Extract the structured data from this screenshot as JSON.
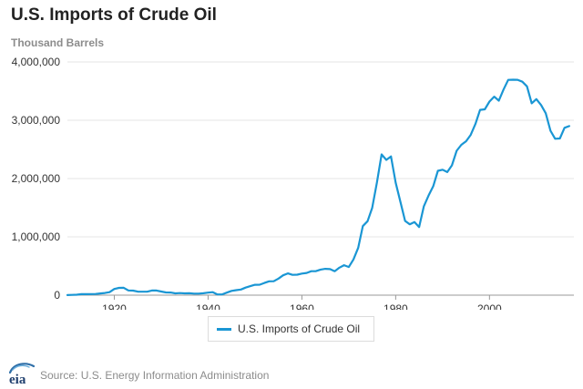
{
  "title": "U.S. Imports of Crude Oil",
  "subtitle": "Thousand Barrels",
  "legend": {
    "label": "U.S. Imports of Crude Oil"
  },
  "source": "Source: U.S. Energy Information Administration",
  "logo_text": "eia",
  "colors": {
    "series": "#1a96d4",
    "grid": "#e6e6e6",
    "axis": "#999999"
  },
  "chart_data": {
    "type": "line",
    "title": "U.S. Imports of Crude Oil",
    "subtitle": "Thousand Barrels",
    "xlabel": "",
    "ylabel": "",
    "xlim": [
      1910,
      2018
    ],
    "ylim": [
      0,
      4000000
    ],
    "x_ticks": [
      1920,
      1940,
      1960,
      1980,
      2000
    ],
    "x_tick_labels": [
      "1920",
      "1940",
      "1960",
      "1980",
      "2000"
    ],
    "y_ticks": [
      0,
      1000000,
      2000000,
      3000000,
      4000000
    ],
    "y_tick_labels": [
      "0",
      "1,000,000",
      "2,000,000",
      "3,000,000",
      "4,000,000"
    ],
    "grid": "horizontal",
    "legend_position": "bottom",
    "series": [
      {
        "name": "U.S. Imports of Crude Oil",
        "color": "#1a96d4",
        "x": [
          1910,
          1911,
          1912,
          1913,
          1914,
          1915,
          1916,
          1917,
          1918,
          1919,
          1920,
          1921,
          1922,
          1923,
          1924,
          1925,
          1926,
          1927,
          1928,
          1929,
          1930,
          1931,
          1932,
          1933,
          1934,
          1935,
          1936,
          1937,
          1938,
          1939,
          1940,
          1941,
          1942,
          1943,
          1944,
          1945,
          1946,
          1947,
          1948,
          1949,
          1950,
          1951,
          1952,
          1953,
          1954,
          1955,
          1956,
          1957,
          1958,
          1959,
          1960,
          1961,
          1962,
          1963,
          1964,
          1965,
          1966,
          1967,
          1968,
          1969,
          1970,
          1971,
          1972,
          1973,
          1974,
          1975,
          1976,
          1977,
          1978,
          1979,
          1980,
          1981,
          1982,
          1983,
          1984,
          1985,
          1986,
          1987,
          1988,
          1989,
          1990,
          1991,
          1992,
          1993,
          1994,
          1995,
          1996,
          1997,
          1998,
          1999,
          2000,
          2001,
          2002,
          2003,
          2004,
          2005,
          2006,
          2007,
          2008,
          2009,
          2010,
          2011,
          2012,
          2013,
          2014,
          2015,
          2016,
          2017
        ],
        "values": [
          1000,
          5000,
          8000,
          17000,
          17000,
          18000,
          20000,
          30000,
          38000,
          52000,
          106000,
          125000,
          127000,
          82000,
          78000,
          61000,
          60000,
          59000,
          80000,
          79000,
          62000,
          47000,
          45000,
          32000,
          36000,
          32000,
          33000,
          27000,
          26000,
          33000,
          43000,
          51000,
          12000,
          14000,
          44000,
          74000,
          86000,
          97000,
          129000,
          154000,
          178000,
          179000,
          209000,
          237000,
          239000,
          285000,
          341000,
          373000,
          348000,
          352000,
          371000,
          382000,
          411000,
          413000,
          439000,
          452000,
          447000,
          411000,
          472000,
          514000,
          483000,
          613000,
          811000,
          1184000,
          1269000,
          1498000,
          1935000,
          2414000,
          2320000,
          2380000,
          1926000,
          1605000,
          1273000,
          1215000,
          1254000,
          1168000,
          1525000,
          1706000,
          1869000,
          2133000,
          2151000,
          2111000,
          2226000,
          2477000,
          2578000,
          2639000,
          2748000,
          2936000,
          3178000,
          3187000,
          3320000,
          3405000,
          3336000,
          3528000,
          3692000,
          3696000,
          3693000,
          3661000,
          3581000,
          3290000,
          3363000,
          3261000,
          3121000,
          2821000,
          2683000,
          2687000,
          2871000,
          2900000
        ]
      }
    ]
  }
}
